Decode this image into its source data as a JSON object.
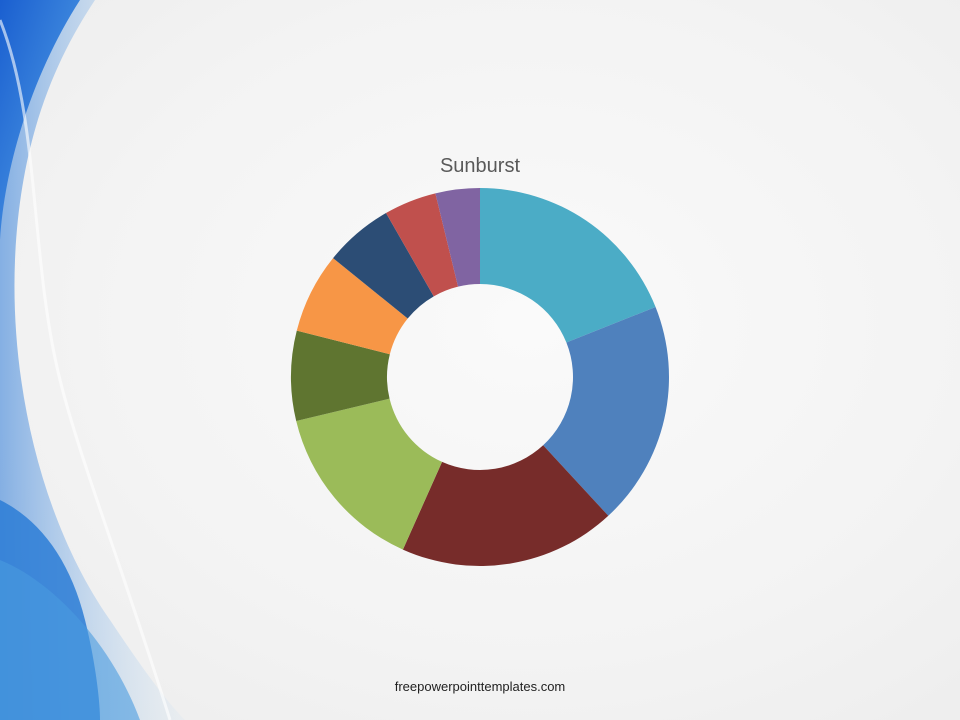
{
  "chart_data": {
    "type": "sunburst",
    "title": "Sunburst",
    "unit": "percent of total (estimated)",
    "values": [
      19.0,
      19.2,
      18.6,
      14.6,
      7.7,
      6.9,
      5.9,
      4.5,
      3.8
    ],
    "colors": [
      "#4bacc6",
      "#4f81bd",
      "#772c2a",
      "#9bbb59",
      "#5f7530",
      "#f79646",
      "#2c4d75",
      "#c0504d",
      "#8064a2"
    ],
    "legend": "none"
  },
  "footer": "freepowerpointtemplates.com"
}
